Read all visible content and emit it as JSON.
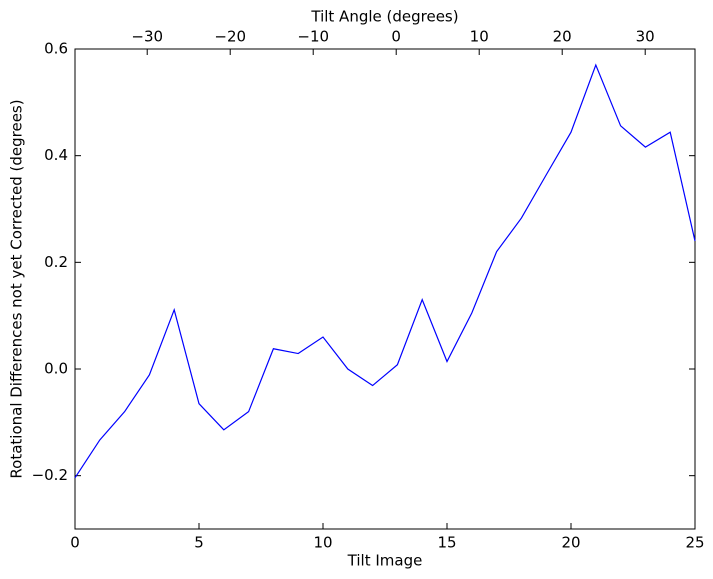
{
  "chart_data": {
    "type": "line",
    "xlabel": "Tilt Image",
    "ylabel": "Rotational Differences not yet Corrected (degrees)",
    "x2label": "Tilt Angle (degrees)",
    "x": [
      0,
      1,
      2,
      3,
      4,
      5,
      6,
      7,
      8,
      9,
      10,
      11,
      12,
      13,
      14,
      15,
      16,
      17,
      18,
      19,
      20,
      21,
      22,
      23,
      24,
      25
    ],
    "values": [
      -0.204,
      -0.133,
      -0.08,
      -0.011,
      0.111,
      -0.065,
      -0.114,
      -0.08,
      0.038,
      0.029,
      0.06,
      0.0,
      -0.031,
      0.008,
      0.13,
      0.014,
      0.105,
      0.22,
      0.283,
      0.364,
      0.444,
      0.57,
      0.456,
      0.416,
      0.444,
      0.24
    ],
    "color": "#0000ff",
    "xlim": [
      0,
      25
    ],
    "xticks": [
      0,
      5,
      10,
      15,
      20,
      25
    ],
    "ylim": [
      -0.3,
      0.6
    ],
    "yticks": [
      {
        "value": -0.2,
        "label": "−0.2"
      },
      {
        "value": 0,
        "label": "0.0"
      },
      {
        "value": 0.2,
        "label": "0.2"
      },
      {
        "value": 0.4,
        "label": "0.4"
      },
      {
        "value": 0.6,
        "label": "0.6"
      }
    ],
    "x2lim": [
      -38.7,
      36.0
    ],
    "x2ticks": [
      {
        "value": -30,
        "label": "−30"
      },
      {
        "value": -20,
        "label": "−20"
      },
      {
        "value": -10,
        "label": "−10"
      },
      0,
      10,
      20,
      30
    ]
  }
}
